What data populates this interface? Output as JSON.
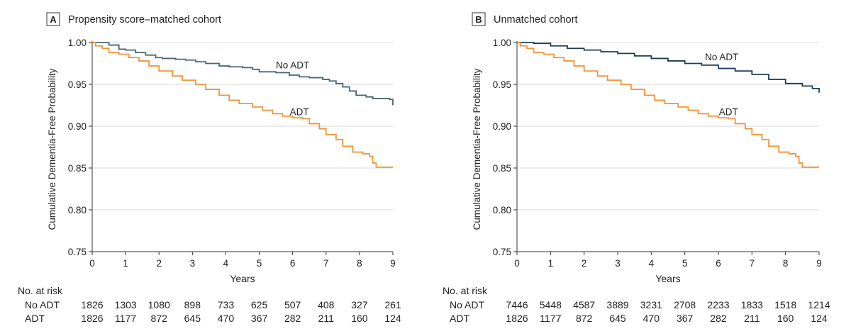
{
  "figure": {
    "risk_title": "No. at risk"
  },
  "chart_data": [
    {
      "type": "line",
      "panel_letter": "A",
      "title": "Propensity score–matched cohort",
      "xlabel": "Years",
      "ylabel": "Cumulative Dementia-Free Probability",
      "xlim": [
        0,
        9
      ],
      "ylim": [
        0.75,
        1.0
      ],
      "xticks": [
        0,
        1,
        2,
        3,
        4,
        5,
        6,
        7,
        8,
        9
      ],
      "yticks": [
        "0.75",
        "0.80",
        "0.85",
        "0.90",
        "0.95",
        "1.00"
      ],
      "grid": true,
      "series": [
        {
          "name": "No ADT",
          "color": "#4a6670",
          "label_pos": [
            6.0,
            0.969
          ],
          "points": [
            [
              0,
              1.0
            ],
            [
              0.3,
              1.0
            ],
            [
              0.5,
              0.997
            ],
            [
              0.8,
              0.992
            ],
            [
              1.0,
              0.991
            ],
            [
              1.3,
              0.988
            ],
            [
              1.6,
              0.985
            ],
            [
              1.9,
              0.982
            ],
            [
              2.1,
              0.981
            ],
            [
              2.5,
              0.98
            ],
            [
              2.8,
              0.979
            ],
            [
              3.1,
              0.977
            ],
            [
              3.4,
              0.975
            ],
            [
              3.8,
              0.972
            ],
            [
              4.1,
              0.971
            ],
            [
              4.5,
              0.97
            ],
            [
              4.8,
              0.968
            ],
            [
              5.0,
              0.965
            ],
            [
              5.5,
              0.964
            ],
            [
              5.9,
              0.961
            ],
            [
              6.2,
              0.959
            ],
            [
              6.5,
              0.958
            ],
            [
              6.9,
              0.956
            ],
            [
              7.1,
              0.954
            ],
            [
              7.3,
              0.951
            ],
            [
              7.5,
              0.947
            ],
            [
              7.7,
              0.942
            ],
            [
              7.9,
              0.937
            ],
            [
              8.2,
              0.935
            ],
            [
              8.4,
              0.933
            ],
            [
              8.9,
              0.932
            ],
            [
              9.0,
              0.925
            ]
          ]
        },
        {
          "name": "ADT",
          "color": "#f0963c",
          "label_pos": [
            6.2,
            0.913
          ],
          "points": [
            [
              0,
              1.0
            ],
            [
              0.1,
              0.996
            ],
            [
              0.3,
              0.993
            ],
            [
              0.5,
              0.988
            ],
            [
              0.8,
              0.986
            ],
            [
              1.1,
              0.982
            ],
            [
              1.4,
              0.978
            ],
            [
              1.7,
              0.972
            ],
            [
              2.0,
              0.966
            ],
            [
              2.4,
              0.96
            ],
            [
              2.7,
              0.955
            ],
            [
              3.1,
              0.95
            ],
            [
              3.4,
              0.944
            ],
            [
              3.8,
              0.937
            ],
            [
              4.1,
              0.931
            ],
            [
              4.4,
              0.927
            ],
            [
              4.8,
              0.923
            ],
            [
              5.1,
              0.919
            ],
            [
              5.4,
              0.915
            ],
            [
              5.7,
              0.912
            ],
            [
              6.0,
              0.91
            ],
            [
              6.3,
              0.909
            ],
            [
              6.5,
              0.903
            ],
            [
              6.8,
              0.897
            ],
            [
              7.0,
              0.89
            ],
            [
              7.3,
              0.884
            ],
            [
              7.5,
              0.876
            ],
            [
              7.8,
              0.869
            ],
            [
              8.1,
              0.867
            ],
            [
              8.3,
              0.864
            ],
            [
              8.4,
              0.856
            ],
            [
              8.5,
              0.851
            ],
            [
              9.0,
              0.851
            ]
          ]
        }
      ],
      "risk_table": {
        "rows": [
          {
            "label": "No ADT",
            "values": [
              "1826",
              "1303",
              "1080",
              "898",
              "733",
              "625",
              "507",
              "408",
              "327",
              "261"
            ]
          },
          {
            "label": "ADT",
            "values": [
              "1826",
              "1177",
              "872",
              "645",
              "470",
              "367",
              "282",
              "211",
              "160",
              "124"
            ]
          }
        ]
      }
    },
    {
      "type": "line",
      "panel_letter": "B",
      "title": "Unmatched cohort",
      "xlabel": "Years",
      "ylabel": "Cumulative Dementia-Free Probability",
      "xlim": [
        0,
        9
      ],
      "ylim": [
        0.75,
        1.0
      ],
      "xticks": [
        0,
        1,
        2,
        3,
        4,
        5,
        6,
        7,
        8,
        9
      ],
      "yticks": [
        "0.75",
        "0.80",
        "0.85",
        "0.90",
        "0.95",
        "1.00"
      ],
      "grid": true,
      "series": [
        {
          "name": "No ADT",
          "color": "#1f3b57",
          "label_pos": [
            6.1,
            0.979
          ],
          "points": [
            [
              0,
              1.0
            ],
            [
              0.5,
              0.999
            ],
            [
              1.0,
              0.996
            ],
            [
              1.5,
              0.993
            ],
            [
              2.0,
              0.991
            ],
            [
              2.5,
              0.989
            ],
            [
              3.0,
              0.987
            ],
            [
              3.5,
              0.984
            ],
            [
              4.0,
              0.981
            ],
            [
              4.5,
              0.978
            ],
            [
              5.0,
              0.975
            ],
            [
              5.5,
              0.973
            ],
            [
              6.0,
              0.969
            ],
            [
              6.5,
              0.966
            ],
            [
              7.0,
              0.962
            ],
            [
              7.5,
              0.956
            ],
            [
              8.0,
              0.951
            ],
            [
              8.5,
              0.948
            ],
            [
              8.8,
              0.945
            ],
            [
              9.0,
              0.94
            ]
          ]
        },
        {
          "name": "ADT",
          "color": "#f0963c",
          "label_pos": [
            6.3,
            0.913
          ],
          "points": [
            [
              0,
              1.0
            ],
            [
              0.1,
              0.996
            ],
            [
              0.3,
              0.993
            ],
            [
              0.5,
              0.988
            ],
            [
              0.8,
              0.986
            ],
            [
              1.1,
              0.982
            ],
            [
              1.4,
              0.978
            ],
            [
              1.7,
              0.972
            ],
            [
              2.0,
              0.966
            ],
            [
              2.4,
              0.96
            ],
            [
              2.7,
              0.955
            ],
            [
              3.1,
              0.95
            ],
            [
              3.4,
              0.944
            ],
            [
              3.8,
              0.937
            ],
            [
              4.1,
              0.931
            ],
            [
              4.4,
              0.927
            ],
            [
              4.8,
              0.923
            ],
            [
              5.1,
              0.919
            ],
            [
              5.4,
              0.915
            ],
            [
              5.7,
              0.912
            ],
            [
              6.0,
              0.91
            ],
            [
              6.3,
              0.909
            ],
            [
              6.5,
              0.903
            ],
            [
              6.8,
              0.897
            ],
            [
              7.0,
              0.89
            ],
            [
              7.3,
              0.884
            ],
            [
              7.5,
              0.876
            ],
            [
              7.8,
              0.869
            ],
            [
              8.1,
              0.867
            ],
            [
              8.3,
              0.864
            ],
            [
              8.4,
              0.856
            ],
            [
              8.5,
              0.851
            ],
            [
              9.0,
              0.851
            ]
          ]
        }
      ],
      "risk_table": {
        "rows": [
          {
            "label": "No ADT",
            "values": [
              "7446",
              "5448",
              "4587",
              "3889",
              "3231",
              "2708",
              "2233",
              "1833",
              "1518",
              "1214"
            ]
          },
          {
            "label": "ADT",
            "values": [
              "1826",
              "1177",
              "872",
              "645",
              "470",
              "367",
              "282",
              "211",
              "160",
              "124"
            ]
          }
        ]
      }
    }
  ]
}
